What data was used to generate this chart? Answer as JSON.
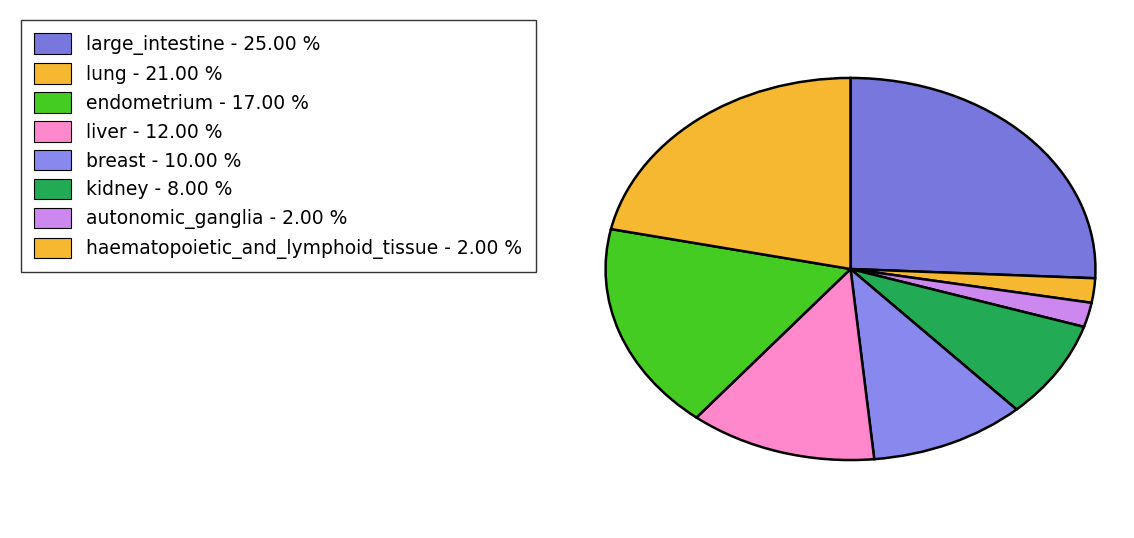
{
  "labels": [
    "large_intestine - 25.00 %",
    "lung - 21.00 %",
    "endometrium - 17.00 %",
    "liver - 12.00 %",
    "breast - 10.00 %",
    "kidney - 8.00 %",
    "autonomic_ganglia - 2.00 %",
    "haematopoietic_and_lymphoid_tissue - 2.00 %"
  ],
  "legend_colors": [
    "#7777dd",
    "#f5b830",
    "#44cc22",
    "#ff88cc",
    "#8888ee",
    "#22aa55",
    "#cc88ee",
    "#f5b830"
  ],
  "plot_values": [
    25,
    2,
    2,
    8,
    10,
    12,
    17,
    21
  ],
  "plot_colors": [
    "#7777dd",
    "#f5b830",
    "#cc88ee",
    "#22aa55",
    "#8888ee",
    "#ff88cc",
    "#44cc22",
    "#f5b830"
  ],
  "startangle": 90,
  "figsize": [
    11.34,
    5.38
  ],
  "dpi": 100,
  "legend_fontsize": 13.5
}
